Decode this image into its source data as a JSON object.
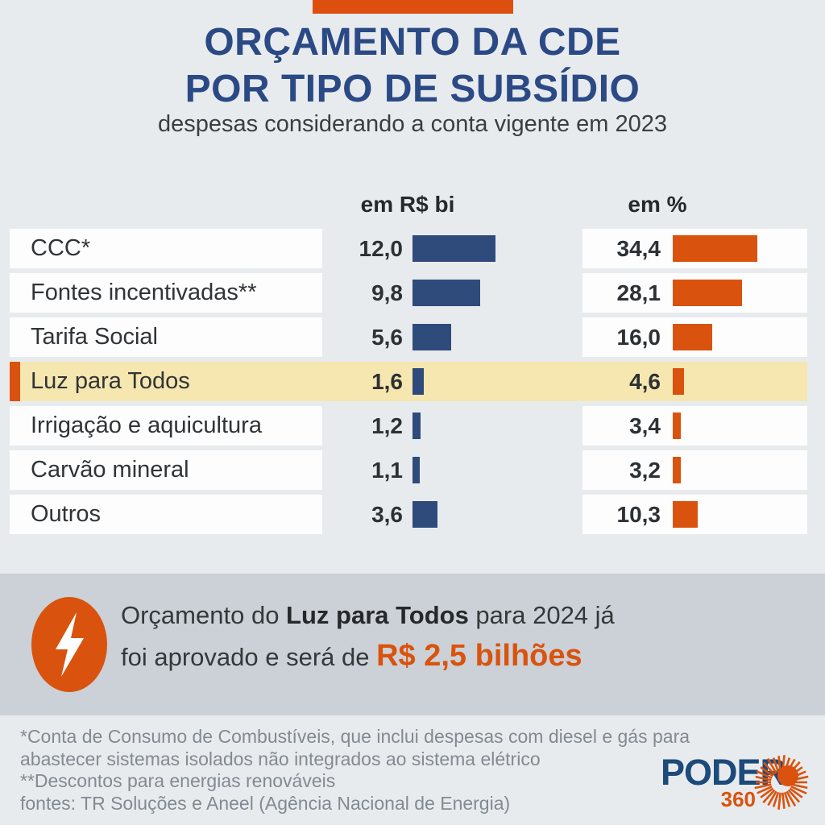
{
  "colors": {
    "accent_orange": "#dd4f0e",
    "bar_blue": "#2f4b7c",
    "bar_orange": "#d9530e",
    "title_blue": "#2b4a85",
    "highlight_row_bg": "#f6e6af",
    "callout_band": "#cbd1d6",
    "logo_navy": "#1b4a7b",
    "footnote_gray": "#828a92"
  },
  "header": {
    "title_line1": "ORÇAMENTO DA CDE",
    "title_line2": "POR TIPO DE SUBSÍDIO",
    "subtitle": "despesas considerando a conta vigente em 2023"
  },
  "chart_data": {
    "type": "bar",
    "title": "Orçamento da CDE por tipo de subsídio",
    "subtitle": "despesas considerando a conta vigente em 2023",
    "categories": [
      "CCC*",
      "Fontes incentivadas**",
      "Tarifa Social",
      "Luz para Todos",
      "Irrigação e aquicultura",
      "Carvão mineral",
      "Outros"
    ],
    "series": [
      {
        "name": "em R$ bi",
        "values": [
          12.0,
          9.8,
          5.6,
          1.6,
          1.2,
          1.1,
          3.6
        ],
        "display": [
          "12,0",
          "9,8",
          "5,6",
          "1,6",
          "1,2",
          "1,1",
          "3,6"
        ],
        "color": "#2f4b7c"
      },
      {
        "name": "em %",
        "values": [
          34.4,
          28.1,
          16.0,
          4.6,
          3.4,
          3.2,
          10.3
        ],
        "display": [
          "34,4",
          "28,1",
          "16,0",
          "4,6",
          "3,4",
          "3,2",
          "10,3"
        ],
        "color": "#d9530e"
      }
    ],
    "highlighted_category": "Luz para Todos",
    "legend_position": "top",
    "grid": false
  },
  "callout": {
    "icon": "lightning-icon",
    "line1_prefix": "Orçamento do ",
    "line1_bold": "Luz para Todos",
    "line1_suffix": " para 2024 já",
    "line2_prefix": "foi aprovado e será de ",
    "line2_highlight": "R$ 2,5 bilhões"
  },
  "footnotes": [
    "*Conta de Consumo de Combustíveis, que inclui despesas com diesel e gás para",
    "abastecer sistemas isolados não integrados ao sistema elétrico",
    "**Descontos para energias renováveis",
    "fontes: TR Soluções e Aneel (Agência Nacional de Energia)"
  ],
  "logo": {
    "name": "PODER",
    "number": "360"
  }
}
